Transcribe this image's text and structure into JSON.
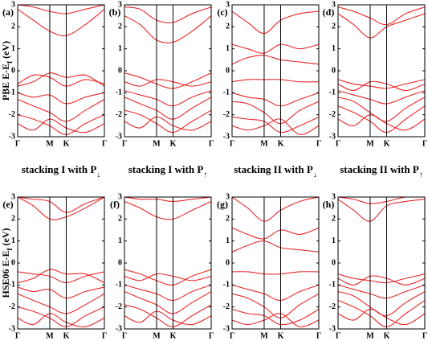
{
  "chart_data": [
    {
      "type": "line",
      "panel_label": "(a)",
      "ylabel_parts": [
        "PBE E-E",
        "f",
        " (eV)"
      ],
      "color": "#e8282a",
      "x": [
        0,
        0.18,
        0.37,
        0.56,
        0.78,
        1
      ],
      "xlim": [
        0,
        1
      ],
      "ylim": [
        -3,
        3
      ],
      "yticks": [
        -3,
        -2,
        -1,
        0,
        1,
        2,
        3
      ],
      "xticks": [
        {
          "value": 0,
          "label": "Γ"
        },
        {
          "value": 0.37,
          "label": "M"
        },
        {
          "value": 0.56,
          "label": "K"
        },
        {
          "value": 1,
          "label": "Γ"
        }
      ],
      "series": [
        {
          "values": [
            2.8,
            2.3,
            1.8,
            1.6,
            2.1,
            2.8
          ]
        },
        {
          "values": [
            3.0,
            2.9,
            2.7,
            2.6,
            2.8,
            3.0
          ]
        },
        {
          "values": [
            -0.6,
            -0.2,
            -0.3,
            -0.7,
            -0.4,
            -0.6
          ]
        },
        {
          "values": [
            -0.7,
            -0.5,
            -0.1,
            -0.3,
            -0.2,
            -0.7
          ]
        },
        {
          "values": [
            -1.0,
            -1.2,
            -1.1,
            -1.5,
            -1.2,
            -1.0
          ]
        },
        {
          "values": [
            -1.3,
            -1.6,
            -1.9,
            -2.3,
            -1.8,
            -1.3
          ]
        },
        {
          "values": [
            -2.0,
            -2.2,
            -2.5,
            -2.9,
            -2.4,
            -2.0
          ]
        },
        {
          "values": [
            -2.4,
            -2.7,
            -2.2,
            -2.6,
            -2.8,
            -2.4
          ]
        }
      ]
    },
    {
      "type": "line",
      "panel_label": "(b)",
      "color": "#e8282a",
      "x": [
        0,
        0.18,
        0.37,
        0.56,
        0.78,
        1
      ],
      "xlim": [
        0,
        1
      ],
      "ylim": [
        -3,
        3
      ],
      "yticks": [
        -3,
        -2,
        -1,
        0,
        1,
        2,
        3
      ],
      "xticks": [
        {
          "value": 0,
          "label": "Γ"
        },
        {
          "value": 0.37,
          "label": "M"
        },
        {
          "value": 0.56,
          "label": "K"
        },
        {
          "value": 1,
          "label": "Γ"
        }
      ],
      "series": [
        {
          "values": [
            2.5,
            2.1,
            1.4,
            1.3,
            1.8,
            2.5
          ]
        },
        {
          "values": [
            2.9,
            2.8,
            2.3,
            2.2,
            2.6,
            2.9
          ]
        },
        {
          "values": [
            -0.1,
            -0.3,
            -0.6,
            -0.8,
            -0.5,
            -0.1
          ]
        },
        {
          "values": [
            -0.5,
            -0.7,
            -0.4,
            -0.5,
            -0.7,
            -0.5
          ]
        },
        {
          "values": [
            -0.9,
            -1.1,
            -1.3,
            -1.6,
            -1.2,
            -0.9
          ]
        },
        {
          "values": [
            -1.2,
            -1.5,
            -1.8,
            -2.2,
            -1.7,
            -1.2
          ]
        },
        {
          "values": [
            -1.8,
            -2.0,
            -2.4,
            -2.8,
            -2.3,
            -1.8
          ]
        },
        {
          "values": [
            -2.3,
            -2.6,
            -2.1,
            -2.5,
            -2.7,
            -2.3
          ]
        }
      ]
    },
    {
      "type": "line",
      "panel_label": "(c)",
      "color": "#e8282a",
      "x": [
        0,
        0.18,
        0.37,
        0.56,
        0.78,
        1
      ],
      "xlim": [
        0,
        1
      ],
      "ylim": [
        -3,
        3
      ],
      "yticks": [
        -3,
        -2,
        -1,
        0,
        1,
        2,
        3
      ],
      "xticks": [
        {
          "value": 0,
          "label": "Γ"
        },
        {
          "value": 0.37,
          "label": "M"
        },
        {
          "value": 0.56,
          "label": "K"
        },
        {
          "value": 1,
          "label": "Γ"
        }
      ],
      "series": [
        {
          "values": [
            2.7,
            2.2,
            1.7,
            2.3,
            2.6,
            2.7
          ]
        },
        {
          "values": [
            1.2,
            1.0,
            0.8,
            1.2,
            1.0,
            1.2
          ]
        },
        {
          "values": [
            0.3,
            0.6,
            0.7,
            0.5,
            0.4,
            0.3
          ]
        },
        {
          "values": [
            -0.5,
            -0.4,
            -0.4,
            -0.4,
            -0.5,
            -0.5
          ]
        },
        {
          "values": [
            -1.0,
            -1.2,
            -1.3,
            -1.6,
            -1.3,
            -1.0
          ]
        },
        {
          "values": [
            -1.4,
            -1.5,
            -1.9,
            -2.4,
            -1.8,
            -1.4
          ]
        },
        {
          "values": [
            -2.1,
            -2.2,
            -2.3,
            -2.8,
            -2.5,
            -2.1
          ]
        },
        {
          "values": [
            -2.5,
            -2.7,
            -2.5,
            -2.2,
            -2.9,
            -2.5
          ]
        }
      ]
    },
    {
      "type": "line",
      "panel_label": "(d)",
      "color": "#e8282a",
      "x": [
        0,
        0.18,
        0.37,
        0.56,
        0.78,
        1
      ],
      "xlim": [
        0,
        1
      ],
      "ylim": [
        -3,
        3
      ],
      "yticks": [
        -3,
        -2,
        -1,
        0,
        1,
        2,
        3
      ],
      "xticks": [
        {
          "value": 0,
          "label": "Γ"
        },
        {
          "value": 0.37,
          "label": "M"
        },
        {
          "value": 0.56,
          "label": "K"
        },
        {
          "value": 1,
          "label": "Γ"
        }
      ],
      "series": [
        {
          "values": [
            2.6,
            2.1,
            1.5,
            2.0,
            2.3,
            2.6
          ]
        },
        {
          "values": [
            2.9,
            2.7,
            2.4,
            2.1,
            2.6,
            2.9
          ]
        },
        {
          "values": [
            -0.4,
            -0.6,
            -0.7,
            -0.8,
            -0.6,
            -0.4
          ]
        },
        {
          "values": [
            -0.6,
            -0.9,
            -0.5,
            -0.6,
            -0.9,
            -0.6
          ]
        },
        {
          "values": [
            -0.9,
            -1.1,
            -1.3,
            -1.5,
            -1.2,
            -0.9
          ]
        },
        {
          "values": [
            -1.2,
            -1.4,
            -1.9,
            -2.3,
            -1.7,
            -1.2
          ]
        },
        {
          "values": [
            -1.6,
            -1.9,
            -2.3,
            -2.8,
            -2.2,
            -1.6
          ]
        },
        {
          "values": [
            -2.2,
            -2.5,
            -2.0,
            -2.4,
            -2.7,
            -2.2
          ]
        }
      ]
    },
    {
      "type": "line",
      "panel_label": "(e)",
      "ylabel_parts": [
        "HSE06 E-E",
        "f",
        " (eV)"
      ],
      "color": "#e8282a",
      "x": [
        0,
        0.18,
        0.37,
        0.56,
        0.78,
        1
      ],
      "xlim": [
        0,
        1
      ],
      "ylim": [
        -3,
        3
      ],
      "yticks": [
        -3,
        -2,
        -1,
        0,
        1,
        2,
        3
      ],
      "xticks": [
        {
          "value": 0,
          "label": "Γ"
        },
        {
          "value": 0.37,
          "label": "M"
        },
        {
          "value": 0.56,
          "label": "K"
        },
        {
          "value": 1,
          "label": "Γ"
        }
      ],
      "series": [
        {
          "values": [
            3.0,
            2.6,
            2.0,
            2.1,
            2.5,
            3.0
          ]
        },
        {
          "values": [
            3.0,
            2.9,
            2.8,
            2.3,
            2.7,
            3.0
          ]
        },
        {
          "values": [
            -0.4,
            -0.5,
            -0.6,
            -0.9,
            -0.6,
            -0.4
          ]
        },
        {
          "values": [
            -0.9,
            -0.7,
            -0.3,
            -0.5,
            -0.5,
            -0.9
          ]
        },
        {
          "values": [
            -1.1,
            -1.3,
            -1.2,
            -1.6,
            -1.3,
            -1.1
          ]
        },
        {
          "values": [
            -1.4,
            -1.7,
            -2.0,
            -2.3,
            -1.9,
            -1.4
          ]
        },
        {
          "values": [
            -2.0,
            -2.2,
            -2.5,
            -2.9,
            -2.4,
            -2.0
          ]
        },
        {
          "values": [
            -2.5,
            -2.8,
            -2.3,
            -2.7,
            -2.9,
            -2.5
          ]
        }
      ]
    },
    {
      "type": "line",
      "panel_label": "(f)",
      "color": "#e8282a",
      "x": [
        0,
        0.18,
        0.37,
        0.56,
        0.78,
        1
      ],
      "xlim": [
        0,
        1
      ],
      "ylim": [
        -3,
        3
      ],
      "yticks": [
        -3,
        -2,
        -1,
        0,
        1,
        2,
        3
      ],
      "xticks": [
        {
          "value": 0,
          "label": "Γ"
        },
        {
          "value": 0.37,
          "label": "M"
        },
        {
          "value": 0.56,
          "label": "K"
        },
        {
          "value": 1,
          "label": "Γ"
        }
      ],
      "series": [
        {
          "values": [
            2.8,
            2.5,
            2.1,
            2.0,
            2.4,
            2.8
          ]
        },
        {
          "values": [
            3.0,
            2.9,
            2.9,
            2.8,
            2.9,
            3.0
          ]
        },
        {
          "values": [
            -0.3,
            -0.5,
            -0.8,
            -1.0,
            -0.6,
            -0.3
          ]
        },
        {
          "values": [
            -0.6,
            -0.8,
            -0.5,
            -0.6,
            -0.8,
            -0.6
          ]
        },
        {
          "values": [
            -1.0,
            -1.2,
            -1.4,
            -1.7,
            -1.3,
            -1.0
          ]
        },
        {
          "values": [
            -1.3,
            -1.6,
            -1.9,
            -2.3,
            -1.8,
            -1.3
          ]
        },
        {
          "values": [
            -1.9,
            -2.1,
            -2.5,
            -2.9,
            -2.4,
            -1.9
          ]
        },
        {
          "values": [
            -2.4,
            -2.7,
            -2.2,
            -2.6,
            -2.8,
            -2.4
          ]
        }
      ]
    },
    {
      "type": "line",
      "panel_label": "(g)",
      "color": "#e8282a",
      "x": [
        0,
        0.18,
        0.37,
        0.56,
        0.78,
        1
      ],
      "xlim": [
        0,
        1
      ],
      "ylim": [
        -3,
        3
      ],
      "yticks": [
        -3,
        -2,
        -1,
        0,
        1,
        2,
        3
      ],
      "xticks": [
        {
          "value": 0,
          "label": "Γ"
        },
        {
          "value": 0.37,
          "label": "M"
        },
        {
          "value": 0.56,
          "label": "K"
        },
        {
          "value": 1,
          "label": "Γ"
        }
      ],
      "series": [
        {
          "values": [
            3.0,
            2.5,
            1.9,
            2.4,
            2.8,
            3.0
          ]
        },
        {
          "values": [
            1.6,
            1.3,
            1.1,
            1.5,
            1.3,
            1.6
          ]
        },
        {
          "values": [
            0.5,
            0.8,
            1.0,
            0.7,
            0.6,
            0.5
          ]
        },
        {
          "values": [
            -0.4,
            -0.4,
            -0.5,
            -0.5,
            -0.4,
            -0.4
          ]
        },
        {
          "values": [
            -1.0,
            -1.2,
            -1.4,
            -1.7,
            -1.3,
            -1.0
          ]
        },
        {
          "values": [
            -1.4,
            -1.6,
            -2.0,
            -2.5,
            -1.9,
            -1.4
          ]
        },
        {
          "values": [
            -2.1,
            -2.3,
            -2.4,
            -2.8,
            -2.6,
            -2.1
          ]
        },
        {
          "values": [
            -2.6,
            -2.8,
            -2.6,
            -2.3,
            -2.9,
            -2.6
          ]
        }
      ]
    },
    {
      "type": "line",
      "panel_label": "(h)",
      "color": "#e8282a",
      "x": [
        0,
        0.18,
        0.37,
        0.56,
        0.78,
        1
      ],
      "xlim": [
        0,
        1
      ],
      "ylim": [
        -3,
        3
      ],
      "yticks": [
        -3,
        -2,
        -1,
        0,
        1,
        2,
        3
      ],
      "xticks": [
        {
          "value": 0,
          "label": "Γ"
        },
        {
          "value": 0.37,
          "label": "M"
        },
        {
          "value": 0.56,
          "label": "K"
        },
        {
          "value": 1,
          "label": "Γ"
        }
      ],
      "series": [
        {
          "values": [
            2.9,
            2.4,
            1.9,
            2.6,
            2.8,
            2.9
          ]
        },
        {
          "values": [
            3.0,
            2.9,
            2.7,
            2.8,
            3.0,
            3.0
          ]
        },
        {
          "values": [
            -0.5,
            -0.7,
            -0.8,
            -0.9,
            -0.7,
            -0.5
          ]
        },
        {
          "values": [
            -0.7,
            -1.0,
            -0.6,
            -0.7,
            -1.0,
            -0.7
          ]
        },
        {
          "values": [
            -1.0,
            -1.2,
            -1.4,
            -1.6,
            -1.3,
            -1.0
          ]
        },
        {
          "values": [
            -1.3,
            -1.5,
            -2.0,
            -2.4,
            -1.8,
            -1.3
          ]
        },
        {
          "values": [
            -1.7,
            -2.0,
            -2.4,
            -2.9,
            -2.3,
            -1.7
          ]
        },
        {
          "values": [
            -2.3,
            -2.6,
            -2.1,
            -2.5,
            -2.8,
            -2.3
          ]
        }
      ]
    }
  ],
  "captions": [
    [
      "stacking I with P",
      "↓"
    ],
    [
      "stacking I with P",
      "↑"
    ],
    [
      "stacking II with P",
      "↓"
    ],
    [
      "stacking II with P",
      "↑"
    ]
  ]
}
